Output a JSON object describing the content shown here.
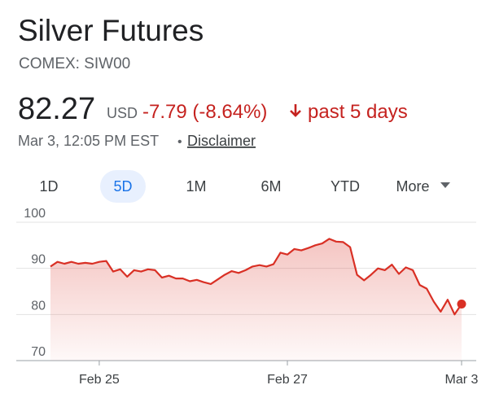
{
  "header": {
    "title": "Silver Futures",
    "exchange": "COMEX: SIW00",
    "price": "82.27",
    "currency": "USD",
    "change": "-7.79 (-8.64%)",
    "period": "past 5 days",
    "timestamp": "Mar 3, 12:05 PM EST",
    "separator": "•",
    "disclaimer": "Disclaimer"
  },
  "tabs": [
    "1D",
    "5D",
    "1M",
    "6M",
    "YTD",
    "More"
  ],
  "selected_tab": "5D",
  "chart_data": {
    "type": "line",
    "categories": [
      null,
      null,
      null,
      null,
      null,
      null,
      null,
      "Feb 25",
      null,
      null,
      null,
      null,
      null,
      null,
      null,
      null,
      null,
      null,
      null,
      null,
      null,
      null,
      null,
      null,
      null,
      null,
      null,
      null,
      null,
      null,
      null,
      null,
      null,
      null,
      "Feb 27",
      null,
      null,
      null,
      null,
      null,
      null,
      null,
      null,
      null,
      null,
      null,
      null,
      null,
      null,
      null,
      null,
      null,
      null,
      null,
      null,
      null,
      null,
      null,
      null,
      "Mar 3"
    ],
    "values": [
      90.4,
      91.4,
      91.0,
      91.4,
      91.0,
      91.2,
      91.0,
      91.4,
      91.6,
      89.3,
      89.8,
      88.2,
      89.6,
      89.3,
      89.8,
      89.6,
      88.0,
      88.4,
      87.8,
      87.8,
      87.2,
      87.5,
      87.0,
      86.6,
      87.6,
      88.6,
      89.4,
      89.0,
      89.6,
      90.4,
      90.7,
      90.4,
      90.9,
      93.4,
      93.0,
      94.2,
      93.9,
      94.4,
      95.0,
      95.4,
      96.4,
      95.8,
      95.7,
      94.6,
      88.6,
      87.4,
      88.6,
      90.0,
      89.6,
      90.8,
      88.8,
      90.2,
      89.6,
      86.4,
      85.6,
      82.8,
      80.6,
      83.2,
      80.0,
      82.27
    ],
    "color": "#d93025",
    "ylim": [
      70,
      100
    ],
    "yticks": [
      70,
      80,
      90,
      100
    ],
    "grid": true,
    "end_marker": true
  }
}
